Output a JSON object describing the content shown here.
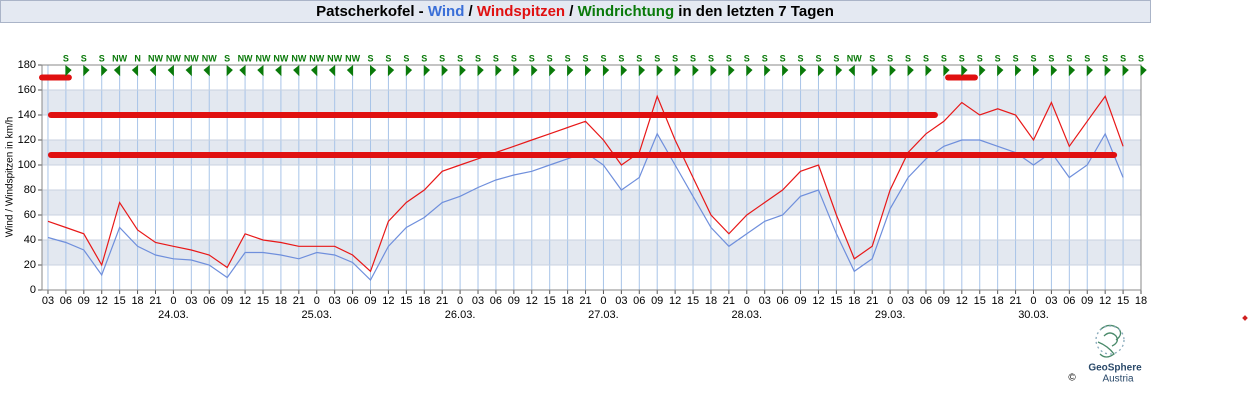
{
  "chart_data": {
    "type": "line",
    "title_parts": [
      {
        "text": "Patscherkofel - ",
        "color": "#000000"
      },
      {
        "text": "Wind",
        "color": "#3a6fd8"
      },
      {
        "text": " / ",
        "color": "#000000"
      },
      {
        "text": "Windspitzen",
        "color": "#e01010"
      },
      {
        "text": " / ",
        "color": "#000000"
      },
      {
        "text": "Windrichtung",
        "color": "#0a7a0a"
      },
      {
        "text": " in den letzten 7 Tagen",
        "color": "#000000"
      }
    ],
    "y_label": "Wind / Windspitzen in km/h",
    "x": [
      -21,
      -18,
      -15,
      -12,
      -9,
      -6,
      -3,
      0,
      3,
      6,
      9,
      12,
      15,
      18,
      21,
      24,
      27,
      30,
      33,
      36,
      39,
      42,
      45,
      48,
      51,
      54,
      57,
      60,
      63,
      66,
      69,
      72,
      75,
      78,
      81,
      84,
      87,
      90,
      93,
      96,
      99,
      102,
      105,
      108,
      111,
      114,
      117,
      120,
      123,
      126,
      129,
      132,
      135,
      138,
      141,
      144,
      147,
      150,
      153,
      156,
      159
    ],
    "series": [
      {
        "color": "#6f8fdc",
        "values": [
          42,
          38,
          32,
          12,
          50,
          35,
          28,
          25,
          24,
          20,
          10,
          30,
          30,
          28,
          25,
          30,
          28,
          22,
          8,
          35,
          50,
          58,
          70,
          75,
          82,
          88,
          92,
          95,
          100,
          105,
          110,
          100,
          80,
          90,
          125,
          100,
          75,
          50,
          35,
          45,
          55,
          60,
          75,
          80,
          45,
          15,
          25,
          65,
          90,
          105,
          115,
          120,
          120,
          115,
          110,
          100,
          110,
          90,
          100,
          125,
          90
        ]
      },
      {
        "color": "#e81818",
        "values": [
          55,
          50,
          45,
          20,
          70,
          48,
          38,
          35,
          32,
          28,
          18,
          45,
          40,
          38,
          35,
          35,
          35,
          28,
          15,
          55,
          70,
          80,
          95,
          100,
          105,
          110,
          115,
          120,
          125,
          130,
          135,
          120,
          100,
          110,
          155,
          120,
          90,
          60,
          45,
          60,
          70,
          80,
          95,
          100,
          60,
          25,
          35,
          80,
          110,
          125,
          135,
          150,
          140,
          145,
          140,
          120,
          150,
          115,
          135,
          155,
          115
        ]
      }
    ],
    "xlim": [
      -22,
      162
    ],
    "ylim": [
      0,
      180
    ],
    "yticks": [
      0,
      20,
      40,
      60,
      80,
      100,
      120,
      140,
      160,
      180
    ],
    "bands": true,
    "grid": true,
    "xticks": [
      {
        "value": -21,
        "label": "03"
      },
      {
        "value": -18,
        "label": "06"
      },
      {
        "value": -15,
        "label": "09"
      },
      {
        "value": -12,
        "label": "12"
      },
      {
        "value": -9,
        "label": "15"
      },
      {
        "value": -6,
        "label": "18"
      },
      {
        "value": -3,
        "label": "21"
      },
      0,
      {
        "value": 3,
        "label": "03"
      },
      {
        "value": 6,
        "label": "06"
      },
      {
        "value": 9,
        "label": "09"
      },
      {
        "value": 12,
        "label": "12"
      },
      {
        "value": 15,
        "label": "15"
      },
      {
        "value": 18,
        "label": "18"
      },
      {
        "value": 21,
        "label": "21"
      },
      {
        "value": 24,
        "label": "0"
      },
      {
        "value": 27,
        "label": "03"
      },
      {
        "value": 30,
        "label": "06"
      },
      {
        "value": 33,
        "label": "09"
      },
      {
        "value": 36,
        "label": "12"
      },
      {
        "value": 39,
        "label": "15"
      },
      {
        "value": 42,
        "label": "18"
      },
      {
        "value": 45,
        "label": "21"
      },
      {
        "value": 48,
        "label": "0"
      },
      {
        "value": 51,
        "label": "03"
      },
      {
        "value": 54,
        "label": "06"
      },
      {
        "value": 57,
        "label": "09"
      },
      {
        "value": 60,
        "label": "12"
      },
      {
        "value": 63,
        "label": "15"
      },
      {
        "value": 66,
        "label": "18"
      },
      {
        "value": 69,
        "label": "21"
      },
      {
        "value": 72,
        "label": "0"
      },
      {
        "value": 75,
        "label": "03"
      },
      {
        "value": 78,
        "label": "06"
      },
      {
        "value": 81,
        "label": "09"
      },
      {
        "value": 84,
        "label": "12"
      },
      {
        "value": 87,
        "label": "15"
      },
      {
        "value": 90,
        "label": "18"
      },
      {
        "value": 93,
        "label": "21"
      },
      {
        "value": 96,
        "label": "0"
      },
      {
        "value": 99,
        "label": "03"
      },
      {
        "value": 102,
        "label": "06"
      },
      {
        "value": 105,
        "label": "09"
      },
      {
        "value": 108,
        "label": "12"
      },
      {
        "value": 111,
        "label": "15"
      },
      {
        "value": 114,
        "label": "18"
      },
      {
        "value": 117,
        "label": "21"
      },
      {
        "value": 120,
        "label": "0"
      },
      {
        "value": 123,
        "label": "03"
      },
      {
        "value": 126,
        "label": "06"
      },
      {
        "value": 129,
        "label": "09"
      },
      {
        "value": 132,
        "label": "12"
      },
      {
        "value": 135,
        "label": "15"
      },
      {
        "value": 138,
        "label": "18"
      },
      {
        "value": 141,
        "label": "21"
      },
      {
        "value": 144,
        "label": "0"
      },
      {
        "value": 147,
        "label": "03"
      },
      {
        "value": 150,
        "label": "06"
      },
      {
        "value": 153,
        "label": "09"
      },
      {
        "value": 156,
        "label": "12"
      },
      {
        "value": 159,
        "label": "15"
      },
      {
        "value": 162,
        "label": "18"
      }
    ],
    "day_labels": [
      {
        "value": 0,
        "label": "24.03."
      },
      {
        "value": 24,
        "label": "25.03."
      },
      {
        "value": 48,
        "label": "26.03."
      },
      {
        "value": 72,
        "label": "27.03."
      },
      {
        "value": 96,
        "label": "28.03."
      },
      {
        "value": 120,
        "label": "29.03."
      },
      {
        "value": 144,
        "label": "30.03."
      }
    ],
    "direction_color": "#0a7a0a",
    "wind_direction": {
      "x": [
        -18,
        -15,
        -12,
        -9,
        -6,
        -3,
        0,
        3,
        6,
        9,
        12,
        15,
        18,
        21,
        24,
        27,
        30,
        33,
        36,
        39,
        42,
        45,
        48,
        51,
        54,
        57,
        60,
        63,
        66,
        69,
        72,
        75,
        78,
        81,
        84,
        87,
        90,
        93,
        96,
        99,
        102,
        105,
        108,
        111,
        114,
        117,
        120,
        123,
        126,
        129,
        132,
        135,
        138,
        141,
        144,
        147,
        150,
        153,
        156,
        159,
        162
      ],
      "labels": [
        "S",
        "S",
        "S",
        "NW",
        "N",
        "NW",
        "NW",
        "NW",
        "NW",
        "S",
        "NW",
        "NW",
        "NW",
        "NW",
        "NW",
        "NW",
        "NW",
        "S",
        "S",
        "S",
        "S",
        "S",
        "S",
        "S",
        "S",
        "S",
        "S",
        "S",
        "S",
        "S",
        "S",
        "S",
        "S",
        "S",
        "S",
        "S",
        "S",
        "S",
        "S",
        "S",
        "S",
        "S",
        "S",
        "S",
        "NW",
        "S",
        "S",
        "S",
        "S",
        "S",
        "S",
        "S",
        "S",
        "S",
        "S",
        "S",
        "S",
        "S",
        "S",
        "S",
        "S"
      ]
    },
    "reference_lines": {
      "color": "#e01010",
      "lines": [
        {
          "value": 140,
          "x": [
            -20.5,
            127.5
          ]
        },
        {
          "value": 108,
          "x": [
            -20.5,
            157.5
          ]
        },
        {
          "value": 170,
          "x": [
            -22,
            -17.5
          ]
        },
        {
          "value": 170,
          "x": [
            129.7,
            134.2
          ]
        }
      ]
    }
  },
  "logo": {
    "name": "GeoSphere",
    "country": "Austria",
    "copyright": "©"
  }
}
